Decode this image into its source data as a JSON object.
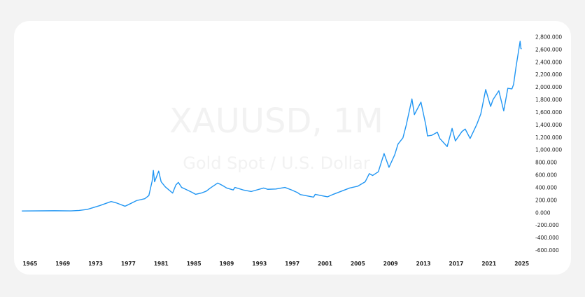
{
  "chart_data": {
    "type": "line",
    "title": "XAUUSD, 1M",
    "subtitle": "Gold Spot / U.S. Dollar",
    "x": [
      1964.0,
      1968.0,
      1970.0,
      1971.0,
      1972.0,
      1973.5,
      1974.9,
      1975.5,
      1976.6,
      1977.0,
      1978.0,
      1979.0,
      1979.5,
      1979.9,
      1980.05,
      1980.2,
      1980.7,
      1981.0,
      1981.5,
      1982.4,
      1982.8,
      1983.1,
      1983.5,
      1984.0,
      1984.8,
      1985.2,
      1985.9,
      1986.5,
      1987.0,
      1987.9,
      1988.5,
      1989.0,
      1989.8,
      1990.0,
      1991.0,
      1992.0,
      1993.5,
      1994.0,
      1995.0,
      1996.1,
      1996.9,
      1997.6,
      1998.0,
      1999.6,
      1999.8,
      2000.5,
      2001.3,
      2002.0,
      2003.0,
      2004.0,
      2005.0,
      2005.9,
      2006.4,
      2006.8,
      2007.5,
      2008.2,
      2008.8,
      2009.5,
      2009.9,
      2010.5,
      2010.9,
      2011.6,
      2011.9,
      2012.7,
      2013.3,
      2013.5,
      2014.0,
      2014.7,
      2015.0,
      2015.9,
      2016.5,
      2016.9,
      2017.7,
      2018.1,
      2018.7,
      2019.5,
      2020.0,
      2020.6,
      2021.2,
      2021.5,
      2022.2,
      2022.8,
      2023.3,
      2023.8,
      2024.0,
      2024.3,
      2024.8,
      2024.9,
      2025.0
    ],
    "series": [
      {
        "name": "XAUUSD",
        "color": "#2196f3",
        "values": [
          35,
          38,
          36,
          43,
          60,
          120,
          185,
          165,
          110,
          135,
          200,
          230,
          280,
          510,
          680,
          500,
          670,
          500,
          420,
          320,
          450,
          490,
          410,
          380,
          330,
          300,
          320,
          350,
          400,
          480,
          440,
          400,
          370,
          410,
          370,
          345,
          400,
          380,
          385,
          410,
          370,
          330,
          295,
          255,
          300,
          280,
          260,
          300,
          350,
          400,
          430,
          500,
          630,
          600,
          660,
          950,
          730,
          930,
          1100,
          1200,
          1400,
          1820,
          1570,
          1770,
          1400,
          1230,
          1240,
          1290,
          1190,
          1060,
          1350,
          1150,
          1300,
          1340,
          1190,
          1410,
          1580,
          1970,
          1700,
          1810,
          1950,
          1630,
          1990,
          1980,
          2050,
          2330,
          2740,
          2620,
          2620
        ]
      }
    ],
    "xlim": [
      1963.9,
      2025.8
    ],
    "xticks": [
      1965,
      1969,
      1973,
      1977,
      1981,
      1985,
      1989,
      1993,
      1997,
      2001,
      2005,
      2009,
      2013,
      2017,
      2021,
      2025
    ],
    "ylim": [
      -700,
      2950
    ],
    "yticks": [
      {
        "value": 2800,
        "label": "2,800.000"
      },
      {
        "value": 2600,
        "label": "2,600.000"
      },
      {
        "value": 2400,
        "label": "2,400.000"
      },
      {
        "value": 2200,
        "label": "2,200.000"
      },
      {
        "value": 2000,
        "label": "2,000.000"
      },
      {
        "value": 1800,
        "label": "1,800.000"
      },
      {
        "value": 1600,
        "label": "1,600.000"
      },
      {
        "value": 1400,
        "label": "1,400.000"
      },
      {
        "value": 1200,
        "label": "1,200.000"
      },
      {
        "value": 1000,
        "label": "1,000.000"
      },
      {
        "value": 800,
        "label": "800.000"
      },
      {
        "value": 600,
        "label": "600.000"
      },
      {
        "value": 400,
        "label": "400.000"
      },
      {
        "value": 200,
        "label": "200.000"
      },
      {
        "value": 0,
        "label": "0.000"
      },
      {
        "value": -200,
        "label": "-200.000"
      },
      {
        "value": -400,
        "label": "-400.000"
      },
      {
        "value": -600,
        "label": "-600.000"
      }
    ],
    "grid": false
  }
}
